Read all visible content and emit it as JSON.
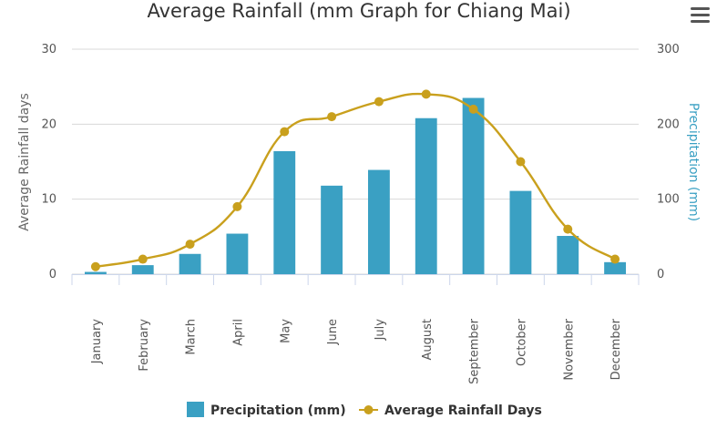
{
  "chart_data": {
    "type": "bar+line",
    "title": "Average Rainfall (mm Graph for Chiang Mai)",
    "categories": [
      "January",
      "February",
      "March",
      "April",
      "May",
      "June",
      "July",
      "August",
      "September",
      "October",
      "November",
      "December"
    ],
    "series": [
      {
        "name": "Precipitation (mm)",
        "type": "bar",
        "axis": "right",
        "color": "#3aa0c3",
        "values": [
          3,
          12,
          27,
          54,
          164,
          118,
          139,
          208,
          235,
          111,
          51,
          16
        ]
      },
      {
        "name": "Average Rainfall Days",
        "type": "spline",
        "axis": "left",
        "color": "#c9a01d",
        "values": [
          1,
          2,
          4,
          9,
          19,
          21,
          23,
          24,
          22,
          15,
          6,
          2
        ]
      }
    ],
    "left_axis": {
      "title": "Average Rainfall days",
      "ticks": [
        "0",
        "10",
        "20",
        "30"
      ],
      "range": [
        0,
        30
      ]
    },
    "right_axis": {
      "title": "Precipitation (mm)",
      "ticks": [
        "0",
        "100",
        "200",
        "300"
      ],
      "range": [
        0,
        300
      ],
      "color": "#3aa0c3"
    },
    "legend": {
      "placement": "bottom-center"
    },
    "grid": true
  },
  "menu": {
    "icon": "hamburger-menu-icon"
  }
}
